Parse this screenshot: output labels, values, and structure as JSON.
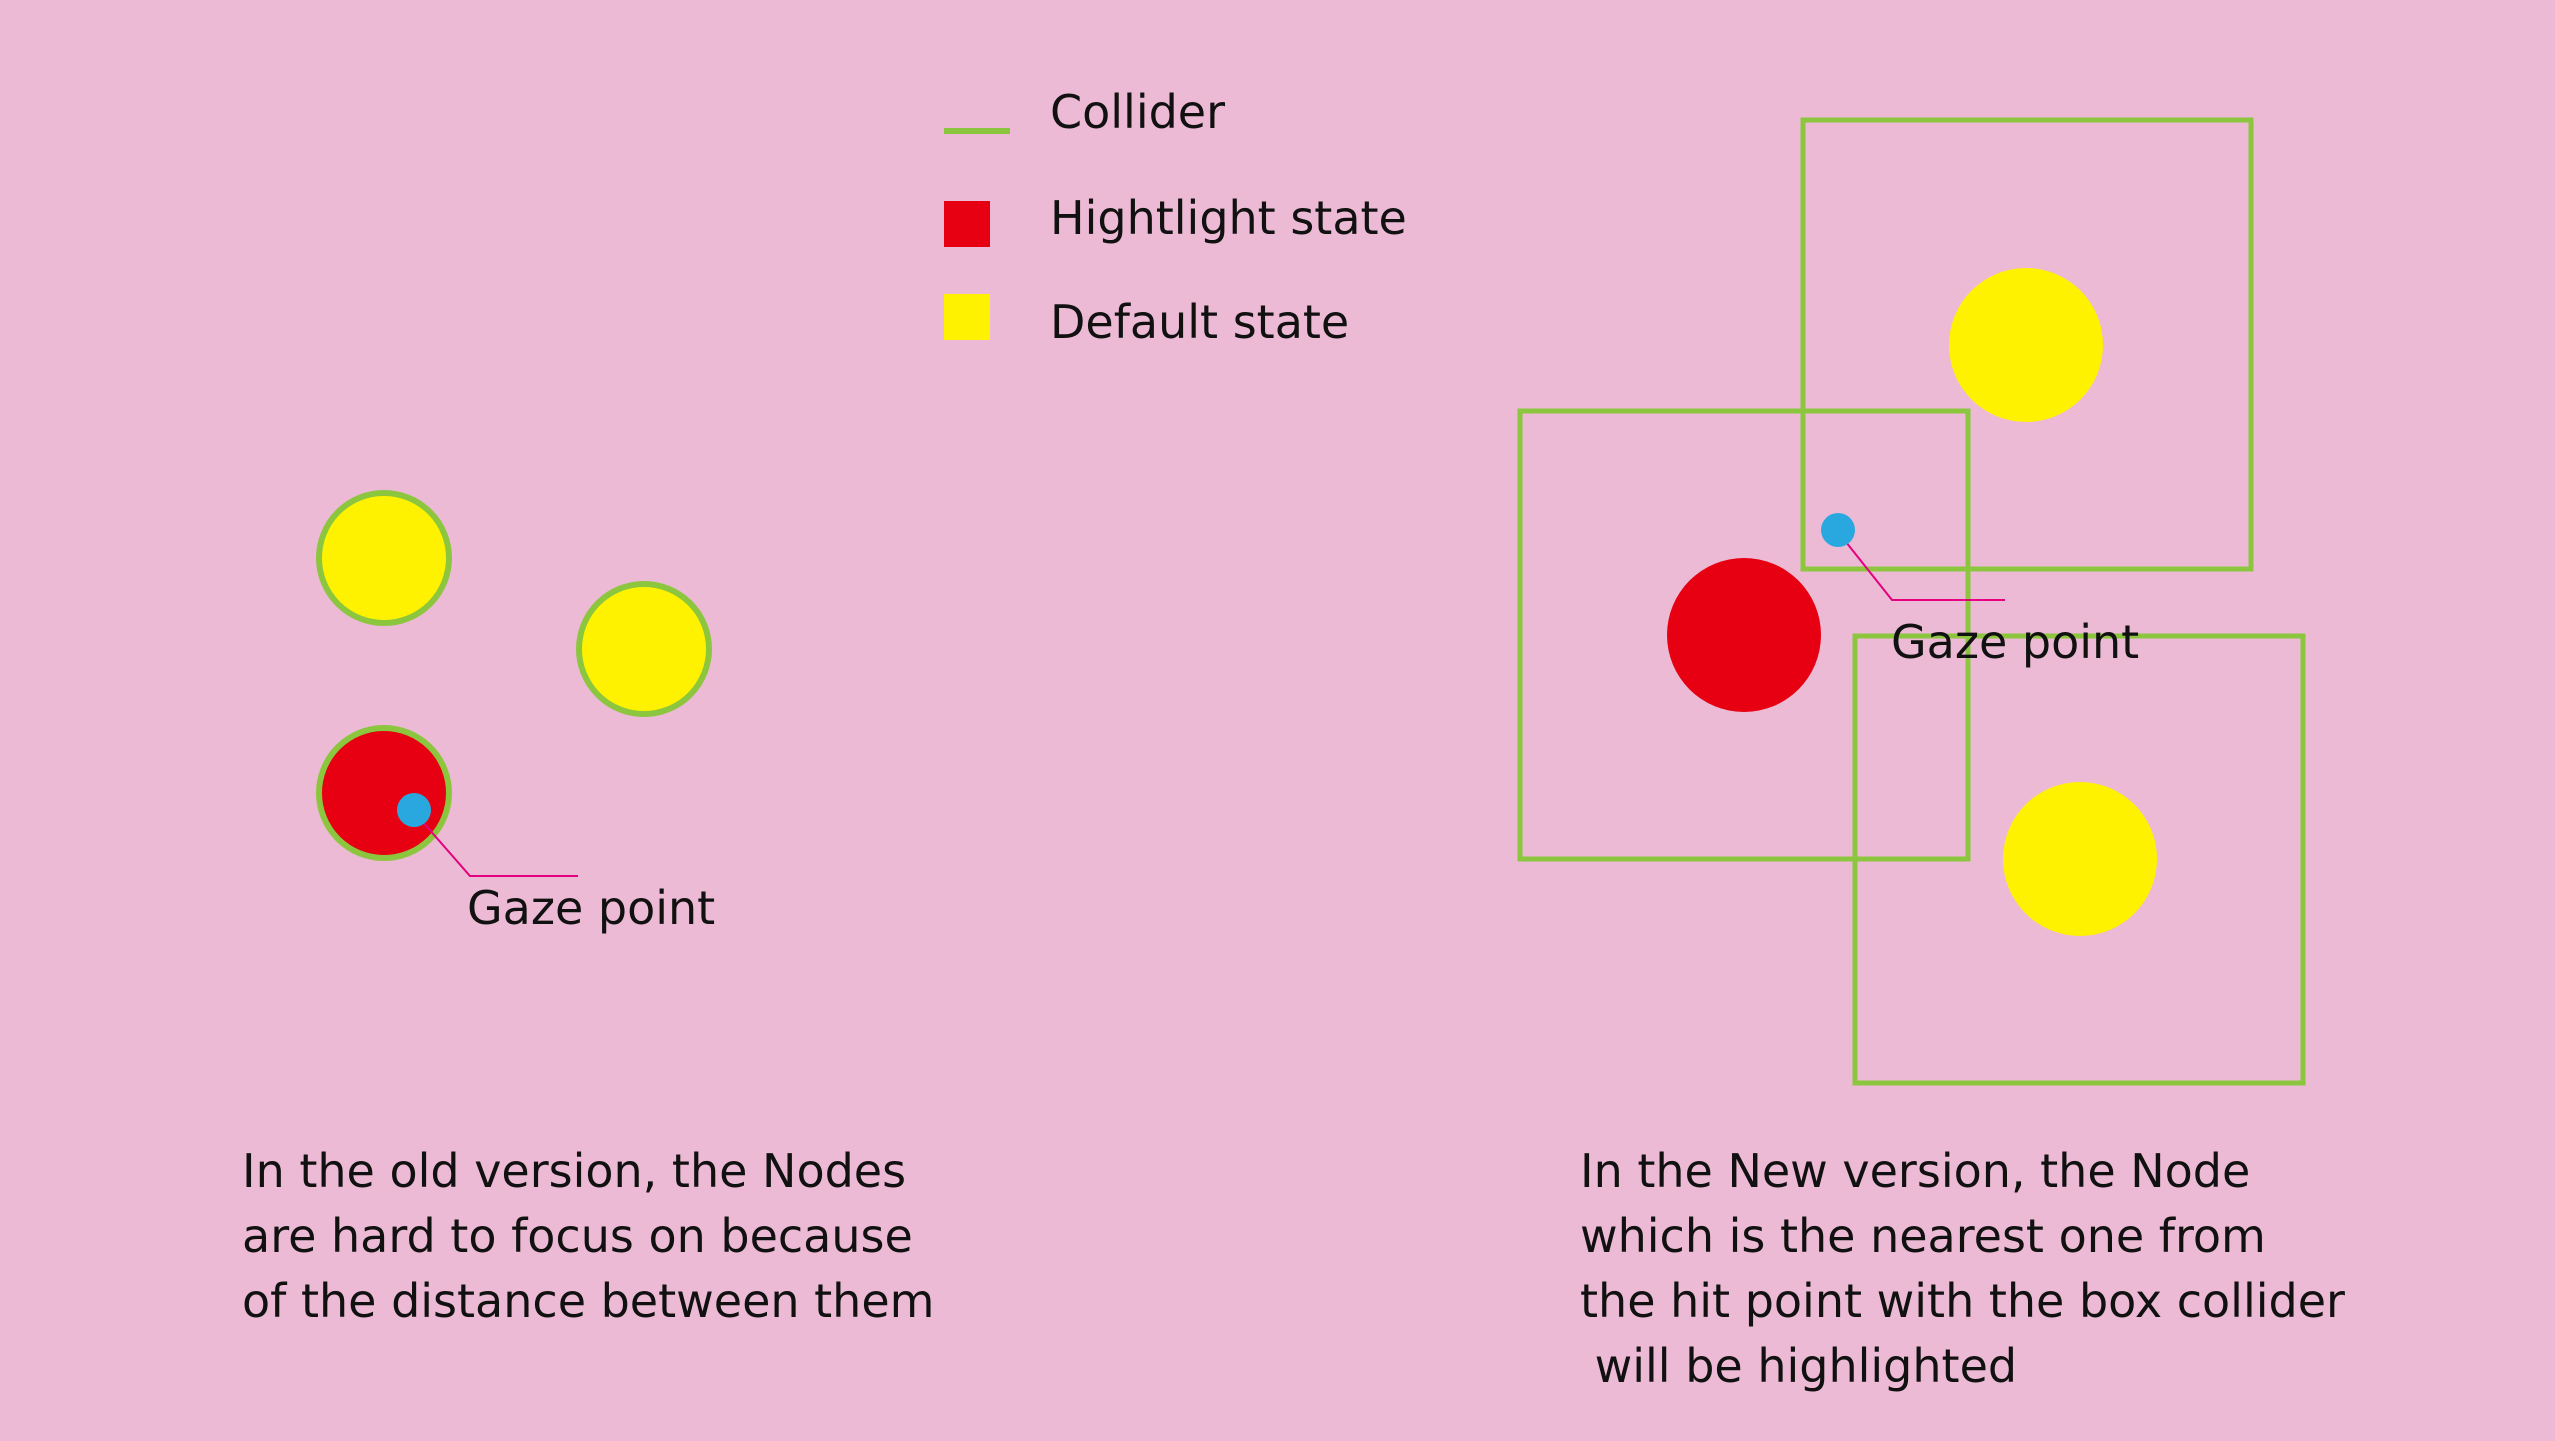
{
  "colors": {
    "background": "#ecbad4",
    "collider": "#8cc63e",
    "highlight": "#e60012",
    "default": "#fff200",
    "gaze": "#29a8e0",
    "gaze_line": "#e4007f"
  },
  "legend": {
    "collider_label": "Collider",
    "highlight_label": "Hightlight state",
    "default_label": "Default state"
  },
  "left_panel": {
    "gaze_label": "Gaze point",
    "caption_lines": [
      "In the old version, the Nodes",
      "are hard to focus on because",
      "of the distance between them"
    ]
  },
  "right_panel": {
    "gaze_label": "Gaze point",
    "caption_lines": [
      "In the New version, the Node",
      "which is the nearest one from",
      "the hit point with the box collider",
      " will be highlighted"
    ]
  }
}
